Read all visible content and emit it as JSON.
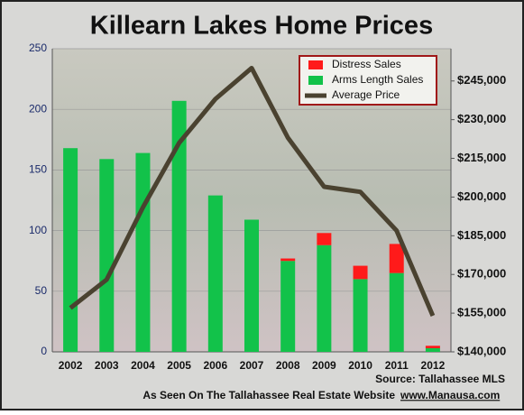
{
  "chart_data": {
    "type": "bar-line",
    "title": "Killearn Lakes Home Prices",
    "categories": [
      "2002",
      "2003",
      "2004",
      "2005",
      "2006",
      "2007",
      "2008",
      "2009",
      "2010",
      "2011",
      "2012"
    ],
    "series": [
      {
        "name": "Distress Sales",
        "color": "#ff1a1a",
        "values": [
          0,
          0,
          0,
          0,
          0,
          0,
          2,
          10,
          11,
          24,
          2
        ]
      },
      {
        "name": "Arms Length Sales",
        "color": "#12c24a",
        "values": [
          168,
          159,
          164,
          207,
          129,
          109,
          75,
          88,
          60,
          65,
          3
        ]
      },
      {
        "name": "Average Price",
        "color": "#4a4230",
        "axis": "y2",
        "values": [
          157000,
          168000,
          196000,
          221000,
          238000,
          250000,
          223000,
          204000,
          202000,
          187000,
          154000
        ]
      }
    ],
    "ylim": [
      0,
      250
    ],
    "yticks": [
      0,
      50,
      100,
      150,
      200,
      250
    ],
    "y2lim": [
      140000,
      257500
    ],
    "y2ticks": [
      {
        "value": 140000,
        "label": "$140,000"
      },
      {
        "value": 155000,
        "label": "$155,000"
      },
      {
        "value": 170000,
        "label": "$170,000"
      },
      {
        "value": 185000,
        "label": "$185,000"
      },
      {
        "value": 200000,
        "label": "$200,000"
      },
      {
        "value": 215000,
        "label": "$215,000"
      },
      {
        "value": 230000,
        "label": "$230,000"
      },
      {
        "value": 245000,
        "label": "$245,000"
      }
    ],
    "grid": true,
    "source": "Source: Tallahassee MLS",
    "footer": "As Seen On The Tallahassee Real Estate Website",
    "footer_link": "www.Manausa.com"
  }
}
